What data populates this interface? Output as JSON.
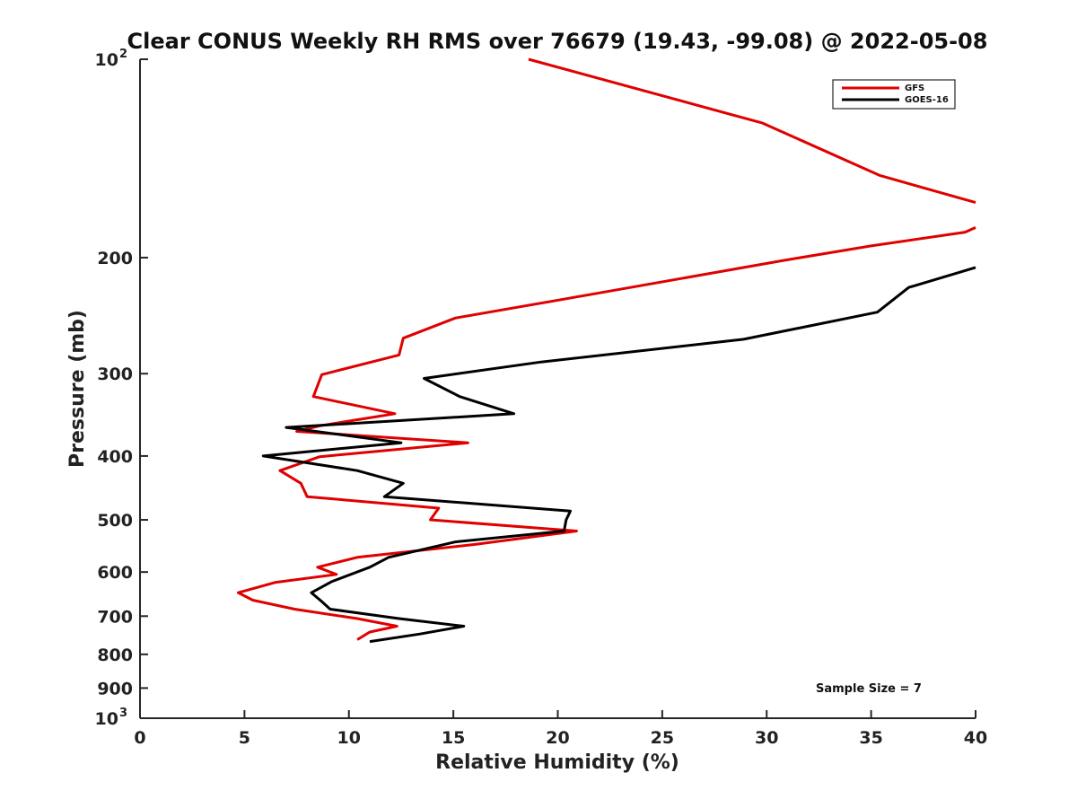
{
  "chart_data": {
    "type": "line",
    "title": "Clear CONUS Weekly RH RMS over 76679 (19.43, -99.08) @ 2022-05-08",
    "xlabel": "Relative Humidity (%)",
    "ylabel": "Pressure (mb)",
    "xlim": [
      0,
      40
    ],
    "ylim": [
      100,
      1000
    ],
    "y_scale": "log",
    "y_reversed": true,
    "x_ticks": [
      "0",
      "5",
      "10",
      "15",
      "20",
      "25",
      "30",
      "35",
      "40"
    ],
    "y_ticks": [
      {
        "value": 100,
        "base": "10",
        "exp": "2"
      },
      {
        "value": 200,
        "label": "200"
      },
      {
        "value": 300,
        "label": "300"
      },
      {
        "value": 400,
        "label": "400"
      },
      {
        "value": 500,
        "label": "500"
      },
      {
        "value": 600,
        "label": "600"
      },
      {
        "value": 700,
        "label": "700"
      },
      {
        "value": 800,
        "label": "800"
      },
      {
        "value": 900,
        "label": "900"
      },
      {
        "value": 1000,
        "base": "10",
        "exp": "3"
      }
    ],
    "grid": false,
    "legend_position": "top-right",
    "annotation": "Sample Size = 7",
    "series": [
      {
        "name": "GFS",
        "color": "#e00000",
        "points": [
          [
            18.6,
            100
          ],
          [
            29.8,
            125
          ],
          [
            35.4,
            150
          ],
          [
            40,
            165
          ],
          null,
          [
            40,
            180
          ],
          [
            39.5,
            183
          ],
          [
            35,
            192
          ],
          [
            30.8,
            202
          ],
          [
            21.4,
            228
          ],
          [
            15.1,
            247
          ],
          [
            12.6,
            265
          ],
          [
            12.4,
            281
          ],
          [
            8.7,
            301
          ],
          [
            8.3,
            325
          ],
          [
            12.2,
            345
          ],
          [
            8.6,
            360
          ],
          [
            7.5,
            367
          ],
          [
            15.7,
            382
          ],
          [
            8.6,
            401
          ],
          [
            6.7,
            421
          ],
          [
            7.7,
            440
          ],
          [
            8.0,
            461
          ],
          [
            14.3,
            480
          ],
          [
            13.9,
            500
          ],
          [
            20.9,
            520
          ],
          [
            16.0,
            545
          ],
          [
            10.4,
            570
          ],
          [
            8.5,
            590
          ],
          [
            9.4,
            605
          ],
          [
            6.5,
            622
          ],
          [
            4.7,
            645
          ],
          [
            5.4,
            662
          ],
          [
            7.4,
            683
          ],
          [
            10.4,
            706
          ],
          [
            12.3,
            725
          ],
          [
            11.0,
            740
          ],
          [
            10.4,
            760
          ]
        ]
      },
      {
        "name": "GOES-16",
        "color": "#000000",
        "points": [
          [
            40,
            207
          ],
          [
            36.8,
            222
          ],
          [
            35.3,
            242
          ],
          [
            28.9,
            266
          ],
          [
            19.2,
            288
          ],
          [
            13.6,
            305
          ],
          [
            15.3,
            325
          ],
          [
            17.9,
            345
          ],
          [
            7.0,
            362
          ],
          [
            12.5,
            382
          ],
          [
            5.9,
            400
          ],
          [
            10.4,
            421
          ],
          [
            12.6,
            440
          ],
          [
            11.7,
            461
          ],
          [
            20.6,
            485
          ],
          [
            20.4,
            500
          ],
          [
            20.3,
            520
          ],
          [
            15.1,
            540
          ],
          [
            11.9,
            570
          ],
          [
            11.0,
            590
          ],
          [
            9.2,
            620
          ],
          [
            8.2,
            645
          ],
          [
            8.7,
            665
          ],
          [
            9.1,
            683
          ],
          [
            12.4,
            706
          ],
          [
            15.5,
            725
          ],
          [
            13.4,
            745
          ],
          [
            11.0,
            765
          ]
        ]
      }
    ]
  }
}
